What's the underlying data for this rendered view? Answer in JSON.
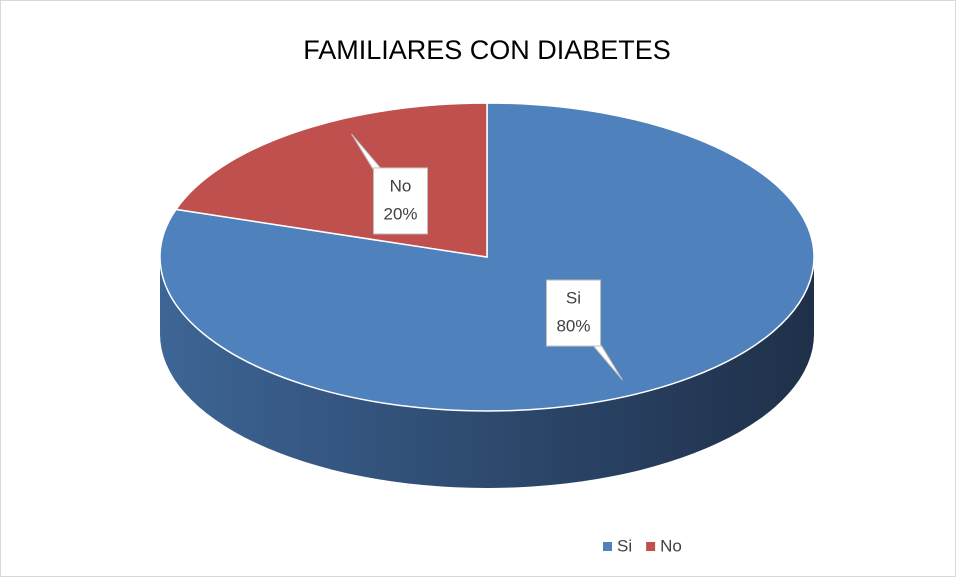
{
  "chart_data": {
    "type": "pie",
    "title": "FAMILIARES CON DIABETES",
    "categories": [
      "Si",
      "No"
    ],
    "values": [
      80,
      20
    ],
    "value_labels": [
      "80%",
      "20%"
    ],
    "colors": [
      "#4f81bd",
      "#c0504d"
    ],
    "legend": "bottom"
  }
}
